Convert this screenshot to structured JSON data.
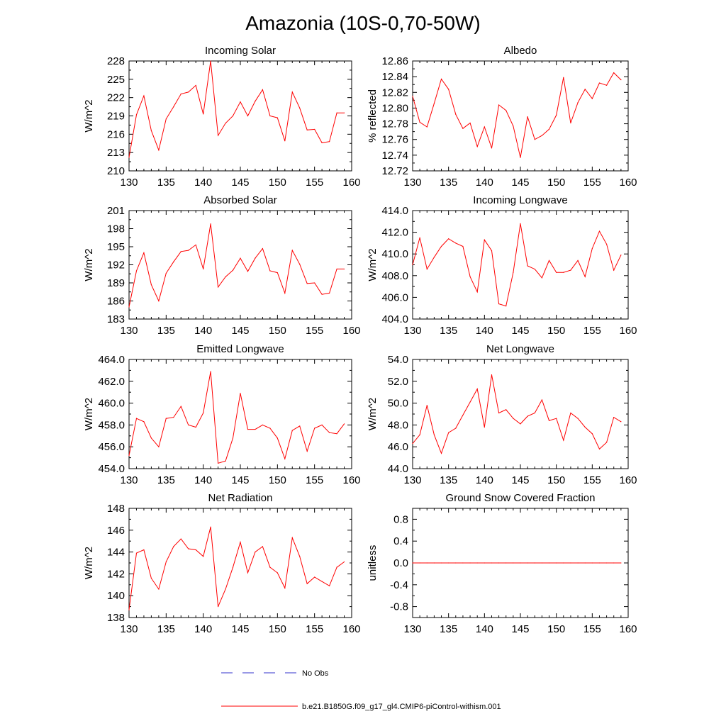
{
  "title": "Amazonia (10S-0,70-50W)",
  "chart_data": [
    {
      "type": "line",
      "title": "Incoming Solar",
      "ylabel": "W/m^2",
      "xlim": [
        130,
        160
      ],
      "xticks": [
        130,
        135,
        140,
        145,
        150,
        155,
        160
      ],
      "ylim": [
        210,
        228
      ],
      "yticks": [
        210,
        213,
        216,
        219,
        222,
        225,
        228
      ],
      "ytick_labels": [
        "210",
        "213",
        "216",
        "219",
        "222",
        "225",
        "228"
      ],
      "x": [
        130,
        131,
        132,
        133,
        134,
        135,
        136,
        137,
        138,
        139,
        140,
        141,
        142,
        143,
        144,
        145,
        146,
        147,
        148,
        149,
        150,
        151,
        152,
        153,
        154,
        155,
        156,
        157,
        158,
        159
      ],
      "values": [
        212.2,
        219.2,
        222.3,
        216.6,
        213.4,
        218.5,
        220.5,
        222.6,
        222.9,
        224.0,
        219.3,
        228.0,
        215.8,
        217.8,
        219.0,
        221.3,
        219.0,
        221.4,
        223.3,
        219.0,
        218.7,
        214.9,
        222.9,
        220.3,
        216.7,
        216.8,
        214.6,
        214.8,
        219.5,
        219.5
      ]
    },
    {
      "type": "line",
      "title": "Albedo",
      "ylabel": "% reflected",
      "xlim": [
        130,
        160
      ],
      "xticks": [
        130,
        135,
        140,
        145,
        150,
        155,
        160
      ],
      "ylim": [
        12.72,
        12.86
      ],
      "yticks": [
        12.72,
        12.74,
        12.76,
        12.78,
        12.8,
        12.82,
        12.84,
        12.86
      ],
      "ytick_labels": [
        "12.72",
        "12.74",
        "12.76",
        "12.78",
        "12.80",
        "12.82",
        "12.84",
        "12.86"
      ],
      "x": [
        130,
        131,
        132,
        133,
        134,
        135,
        136,
        137,
        138,
        139,
        140,
        141,
        142,
        143,
        144,
        145,
        146,
        147,
        148,
        149,
        150,
        151,
        152,
        153,
        154,
        155,
        156,
        157,
        158,
        159
      ],
      "values": [
        12.815,
        12.782,
        12.776,
        12.806,
        12.837,
        12.824,
        12.792,
        12.774,
        12.781,
        12.751,
        12.776,
        12.749,
        12.804,
        12.797,
        12.777,
        12.737,
        12.789,
        12.76,
        12.765,
        12.773,
        12.791,
        12.839,
        12.781,
        12.807,
        12.824,
        12.812,
        12.832,
        12.829,
        12.845,
        12.836
      ]
    },
    {
      "type": "line",
      "title": "Absorbed Solar",
      "ylabel": "W/m^2",
      "xlim": [
        130,
        160
      ],
      "xticks": [
        130,
        135,
        140,
        145,
        150,
        155,
        160
      ],
      "ylim": [
        183,
        201
      ],
      "yticks": [
        183,
        186,
        189,
        192,
        195,
        198,
        201
      ],
      "ytick_labels": [
        "183",
        "186",
        "189",
        "192",
        "195",
        "198",
        "201"
      ],
      "x": [
        130,
        131,
        132,
        133,
        134,
        135,
        136,
        137,
        138,
        139,
        140,
        141,
        142,
        143,
        144,
        145,
        146,
        147,
        148,
        149,
        150,
        151,
        152,
        153,
        154,
        155,
        156,
        157,
        158,
        159
      ],
      "values": [
        185.0,
        191.0,
        194.0,
        188.7,
        186.0,
        190.6,
        192.5,
        194.2,
        194.4,
        195.3,
        191.3,
        198.8,
        188.3,
        190.0,
        191.1,
        193.1,
        190.9,
        193.1,
        194.7,
        191.0,
        190.7,
        187.3,
        194.4,
        192.1,
        188.9,
        189.0,
        187.1,
        187.3,
        191.3,
        191.3
      ]
    },
    {
      "type": "line",
      "title": "Incoming Longwave",
      "ylabel": "W/m^2",
      "xlim": [
        130,
        160
      ],
      "xticks": [
        130,
        135,
        140,
        145,
        150,
        155,
        160
      ],
      "ylim": [
        404.0,
        414.0
      ],
      "yticks": [
        404,
        406,
        408,
        410,
        412,
        414
      ],
      "ytick_labels": [
        "404.0",
        "406.0",
        "408.0",
        "410.0",
        "412.0",
        "414.0"
      ],
      "x": [
        130,
        131,
        132,
        133,
        134,
        135,
        136,
        137,
        138,
        139,
        140,
        141,
        142,
        143,
        144,
        145,
        146,
        147,
        148,
        149,
        150,
        151,
        152,
        153,
        154,
        155,
        156,
        157,
        158,
        159
      ],
      "values": [
        409.0,
        411.5,
        408.6,
        409.7,
        410.7,
        411.4,
        411.0,
        410.7,
        407.9,
        406.5,
        411.3,
        410.3,
        405.4,
        405.2,
        408.3,
        412.8,
        408.9,
        408.6,
        407.8,
        409.4,
        408.3,
        408.3,
        408.5,
        409.4,
        407.9,
        410.5,
        412.1,
        410.9,
        408.5,
        409.9
      ]
    },
    {
      "type": "line",
      "title": "Emitted Longwave",
      "ylabel": "W/m^2",
      "xlim": [
        130,
        160
      ],
      "xticks": [
        130,
        135,
        140,
        145,
        150,
        155,
        160
      ],
      "ylim": [
        454.0,
        464.0
      ],
      "yticks": [
        454,
        456,
        458,
        460,
        462,
        464
      ],
      "ytick_labels": [
        "454.0",
        "456.0",
        "458.0",
        "460.0",
        "462.0",
        "464.0"
      ],
      "x": [
        130,
        131,
        132,
        133,
        134,
        135,
        136,
        137,
        138,
        139,
        140,
        141,
        142,
        143,
        144,
        145,
        146,
        147,
        148,
        149,
        150,
        151,
        152,
        153,
        154,
        155,
        156,
        157,
        158,
        159
      ],
      "values": [
        455.2,
        458.6,
        458.3,
        456.8,
        456.0,
        458.6,
        458.7,
        459.7,
        458.0,
        457.8,
        459.1,
        462.9,
        454.5,
        454.7,
        456.8,
        460.9,
        457.6,
        457.6,
        458.0,
        457.7,
        456.8,
        454.9,
        457.5,
        457.9,
        455.6,
        457.7,
        458.0,
        457.3,
        457.2,
        458.1
      ]
    },
    {
      "type": "line",
      "title": "Net Longwave",
      "ylabel": "W/m^2",
      "xlim": [
        130,
        160
      ],
      "xticks": [
        130,
        135,
        140,
        145,
        150,
        155,
        160
      ],
      "ylim": [
        44.0,
        54.0
      ],
      "yticks": [
        44,
        46,
        48,
        50,
        52,
        54
      ],
      "ytick_labels": [
        "44.0",
        "46.0",
        "48.0",
        "50.0",
        "52.0",
        "54.0"
      ],
      "x": [
        130,
        131,
        132,
        133,
        134,
        135,
        136,
        137,
        138,
        139,
        140,
        141,
        142,
        143,
        144,
        145,
        146,
        147,
        148,
        149,
        150,
        151,
        152,
        153,
        154,
        155,
        156,
        157,
        158,
        159
      ],
      "values": [
        46.3,
        47.1,
        49.8,
        47.1,
        45.4,
        47.3,
        47.7,
        48.9,
        50.1,
        51.3,
        47.8,
        52.6,
        49.1,
        49.4,
        48.6,
        48.1,
        48.8,
        49.1,
        50.3,
        48.4,
        48.6,
        46.6,
        49.1,
        48.6,
        47.8,
        47.2,
        45.8,
        46.4,
        48.7,
        48.3
      ]
    },
    {
      "type": "line",
      "title": "Net Radiation",
      "ylabel": "W/m^2",
      "xlim": [
        130,
        160
      ],
      "xticks": [
        130,
        135,
        140,
        145,
        150,
        155,
        160
      ],
      "ylim": [
        138,
        148
      ],
      "yticks": [
        138,
        140,
        142,
        144,
        146,
        148
      ],
      "ytick_labels": [
        "138",
        "140",
        "142",
        "144",
        "146",
        "148"
      ],
      "x": [
        130,
        131,
        132,
        133,
        134,
        135,
        136,
        137,
        138,
        139,
        140,
        141,
        142,
        143,
        144,
        145,
        146,
        147,
        148,
        149,
        150,
        151,
        152,
        153,
        154,
        155,
        156,
        157,
        158,
        159
      ],
      "values": [
        138.7,
        143.9,
        144.2,
        141.6,
        140.6,
        143.1,
        144.5,
        145.2,
        144.3,
        144.2,
        143.6,
        146.3,
        139.0,
        140.6,
        142.6,
        144.9,
        142.1,
        144.0,
        144.5,
        142.6,
        142.1,
        140.7,
        145.3,
        143.6,
        141.1,
        141.7,
        141.3,
        140.9,
        142.6,
        143.1
      ]
    },
    {
      "type": "line",
      "title": "Ground Snow Covered Fraction",
      "ylabel": "unitless",
      "xlim": [
        130,
        160
      ],
      "xticks": [
        130,
        135,
        140,
        145,
        150,
        155,
        160
      ],
      "ylim": [
        -1.0,
        1.0
      ],
      "yticks": [
        -0.8,
        -0.4,
        0.0,
        0.4,
        0.8
      ],
      "ytick_labels": [
        "-0.8",
        "-0.4",
        "0.0",
        "0.4",
        "0.8"
      ],
      "x": [
        130,
        131,
        132,
        133,
        134,
        135,
        136,
        137,
        138,
        139,
        140,
        141,
        142,
        143,
        144,
        145,
        146,
        147,
        148,
        149,
        150,
        151,
        152,
        153,
        154,
        155,
        156,
        157,
        158,
        159
      ],
      "values": [
        0,
        0,
        0,
        0,
        0,
        0,
        0,
        0,
        0,
        0,
        0,
        0,
        0,
        0,
        0,
        0,
        0,
        0,
        0,
        0,
        0,
        0,
        0,
        0,
        0,
        0,
        0,
        0,
        0,
        0
      ]
    }
  ],
  "legend": {
    "items": [
      {
        "label": "No Obs",
        "style": "dashed",
        "color": "#3333cc"
      },
      {
        "label": "b.e21.B1850G.f09_g17_gl4.CMIP6-piControl-withism.001",
        "style": "solid",
        "color": "#ff0000"
      }
    ]
  },
  "colors": {
    "series": "#ff0000",
    "obs": "#3333cc",
    "axis": "#000000"
  }
}
